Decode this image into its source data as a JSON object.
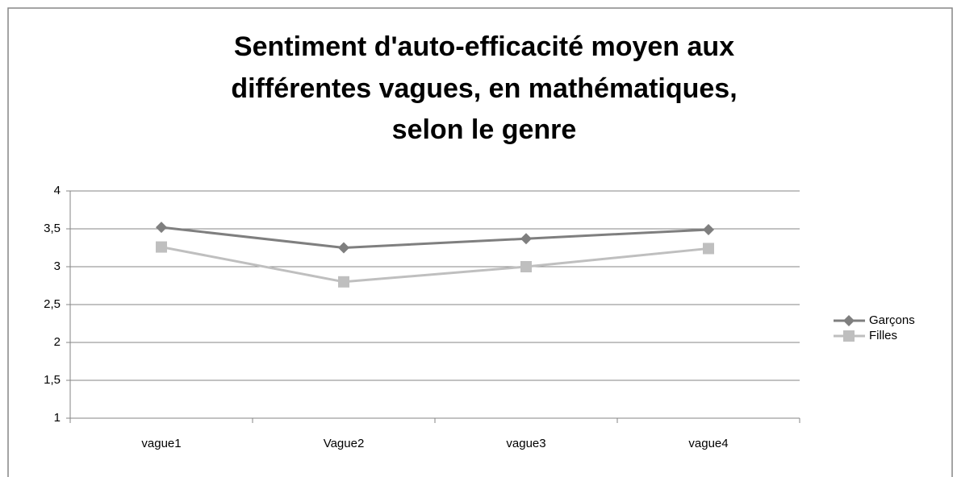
{
  "chart_data": {
    "type": "line",
    "title": [
      "Sentiment d'auto-efficacité moyen aux",
      "différentes vagues, en mathématiques,",
      "selon le genre"
    ],
    "categories": [
      "vague1",
      "Vague2",
      "vague3",
      "vague4"
    ],
    "series": [
      {
        "name": "Garçons",
        "color": "#7f7f7f",
        "marker": "diamond",
        "values": [
          3.52,
          3.25,
          3.37,
          3.49
        ]
      },
      {
        "name": "Filles",
        "color": "#bfbfbf",
        "marker": "square",
        "values": [
          3.26,
          2.8,
          3.0,
          3.24
        ]
      }
    ],
    "ylim": [
      1,
      4
    ],
    "yticks": [
      1,
      {
        "value": 1.5,
        "label": "1,5"
      },
      2,
      {
        "value": 2.5,
        "label": "2,5"
      },
      3,
      {
        "value": 3.5,
        "label": "3,5"
      },
      4
    ],
    "grid": true,
    "legend": "right"
  }
}
